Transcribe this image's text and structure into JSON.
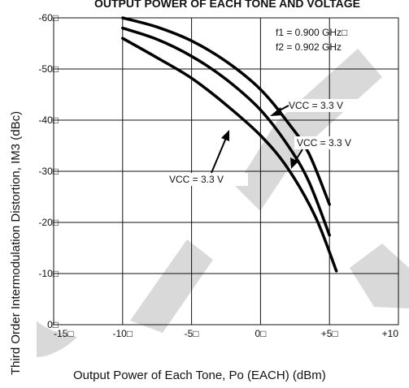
{
  "chart_data": {
    "type": "line",
    "title": "OUTPUT POWER OF EACH TONE AND VOLTAGE",
    "xlabel": "Output Power of Each Tone, Po (EACH) (dBm)",
    "ylabel": "Third Order Intermodulation Distortion, IM3 (dBc)",
    "xlim": [
      -15,
      10
    ],
    "ylim": [
      0,
      -60
    ],
    "grid": true,
    "x_ticks": [
      -15,
      -10,
      -5,
      0,
      5,
      10
    ],
    "x_tick_labels": [
      "-15□",
      "-10□",
      "-5□",
      "0□",
      "+5□",
      "+10"
    ],
    "y_ticks": [
      -60,
      -50,
      -40,
      -30,
      -20,
      -10,
      0
    ],
    "y_tick_labels": [
      "-60□",
      "-50□",
      "-40□",
      "-30□",
      "-20□",
      "-10□",
      "0□"
    ],
    "annotations": [
      {
        "text": "f1 = 0.900 GHz□"
      },
      {
        "text": "f2 = 0.902 GHz"
      }
    ],
    "series": [
      {
        "name": "VCC = 3.3 V",
        "label_position": "top-right",
        "x": [
          -10,
          -7.5,
          -5,
          -2.5,
          0,
          2,
          3.5,
          5
        ],
        "y": [
          -60,
          -58.2,
          -55.5,
          -51.5,
          -46,
          -39.5,
          -33.5,
          -23.5
        ]
      },
      {
        "name": "VCC = 3.3 V",
        "label_position": "right",
        "x": [
          -10,
          -7.5,
          -5,
          -2.5,
          0,
          2,
          3.5,
          5
        ],
        "y": [
          -58,
          -55.8,
          -52.5,
          -48,
          -42,
          -35,
          -28,
          -17.5
        ]
      },
      {
        "name": "VCC = 3.3 V",
        "label_position": "bottom-left",
        "x": [
          -10,
          -7.5,
          -5,
          -2.5,
          0,
          2,
          4,
          5.5
        ],
        "y": [
          -56,
          -52.2,
          -48.2,
          -43,
          -37,
          -30.5,
          -21,
          -10.5
        ]
      }
    ]
  },
  "watermark": {
    "color": "#d9d9d9"
  }
}
